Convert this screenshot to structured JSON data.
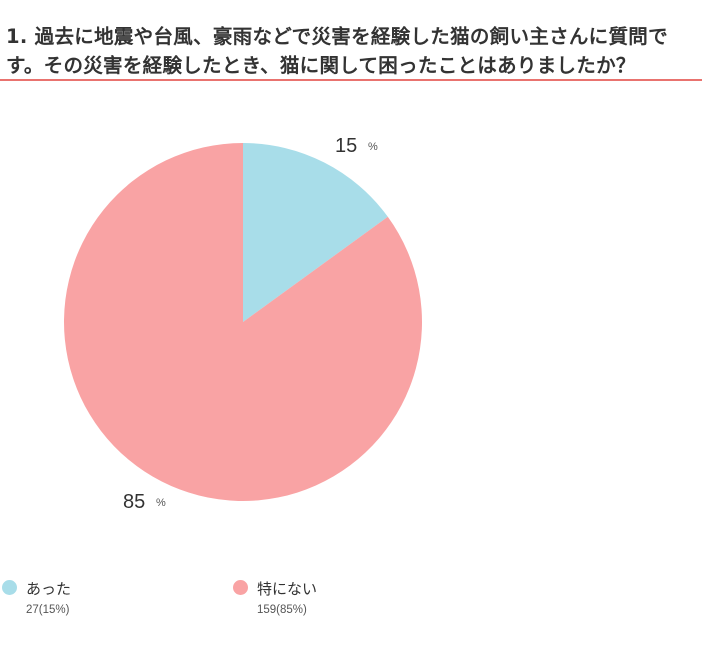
{
  "question": "1. 過去に地震や台風、豪雨などで災害を経験した猫の飼い主さんに質問です。その災害を経験したとき、猫に関して困ったことはありましたか？",
  "colors": {
    "accent_rule": "#e9736f",
    "slice_1": "#a8dde9",
    "slice_2": "#f9a3a4"
  },
  "chart_data": {
    "type": "pie",
    "start_angle_deg": 0,
    "direction": "clockwise",
    "slices": [
      {
        "label": "あった",
        "value": 15,
        "count_text": "27(15%)",
        "pct_text": "15",
        "color": "#a8dde9"
      },
      {
        "label": "特にない",
        "value": 85,
        "count_text": "159(85%)",
        "pct_text": "85",
        "color": "#f9a3a4"
      }
    ],
    "percent_symbol": "%"
  }
}
